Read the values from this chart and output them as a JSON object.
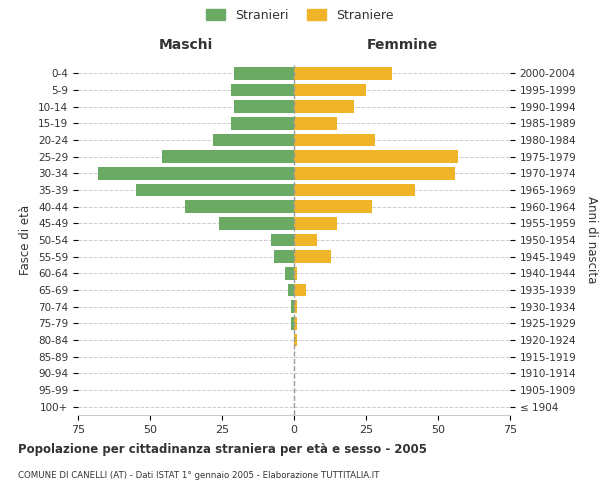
{
  "age_groups": [
    "100+",
    "95-99",
    "90-94",
    "85-89",
    "80-84",
    "75-79",
    "70-74",
    "65-69",
    "60-64",
    "55-59",
    "50-54",
    "45-49",
    "40-44",
    "35-39",
    "30-34",
    "25-29",
    "20-24",
    "15-19",
    "10-14",
    "5-9",
    "0-4"
  ],
  "birth_years": [
    "≤ 1904",
    "1905-1909",
    "1910-1914",
    "1915-1919",
    "1920-1924",
    "1925-1929",
    "1930-1934",
    "1935-1939",
    "1940-1944",
    "1945-1949",
    "1950-1954",
    "1955-1959",
    "1960-1964",
    "1965-1969",
    "1970-1974",
    "1975-1979",
    "1980-1984",
    "1985-1989",
    "1990-1994",
    "1995-1999",
    "2000-2004"
  ],
  "males": [
    0,
    0,
    0,
    0,
    0,
    1,
    1,
    2,
    3,
    7,
    8,
    26,
    38,
    55,
    68,
    46,
    28,
    22,
    21,
    22,
    21
  ],
  "females": [
    0,
    0,
    0,
    0,
    1,
    1,
    1,
    4,
    1,
    13,
    8,
    15,
    27,
    42,
    56,
    57,
    28,
    15,
    21,
    25,
    34
  ],
  "male_color": "#6aaa64",
  "female_color": "#f0b429",
  "background_color": "#ffffff",
  "grid_color": "#cccccc",
  "title": "Popolazione per cittadinanza straniera per età e sesso - 2005",
  "subtitle": "COMUNE DI CANELLI (AT) - Dati ISTAT 1° gennaio 2005 - Elaborazione TUTTITALIA.IT",
  "xlabel_left": "Maschi",
  "xlabel_right": "Femmine",
  "ylabel_left": "Fasce di età",
  "ylabel_right": "Anni di nascita",
  "legend_male": "Stranieri",
  "legend_female": "Straniere",
  "xlim": 75,
  "text_color": "#333333",
  "grid_color_light": "#dddddd"
}
